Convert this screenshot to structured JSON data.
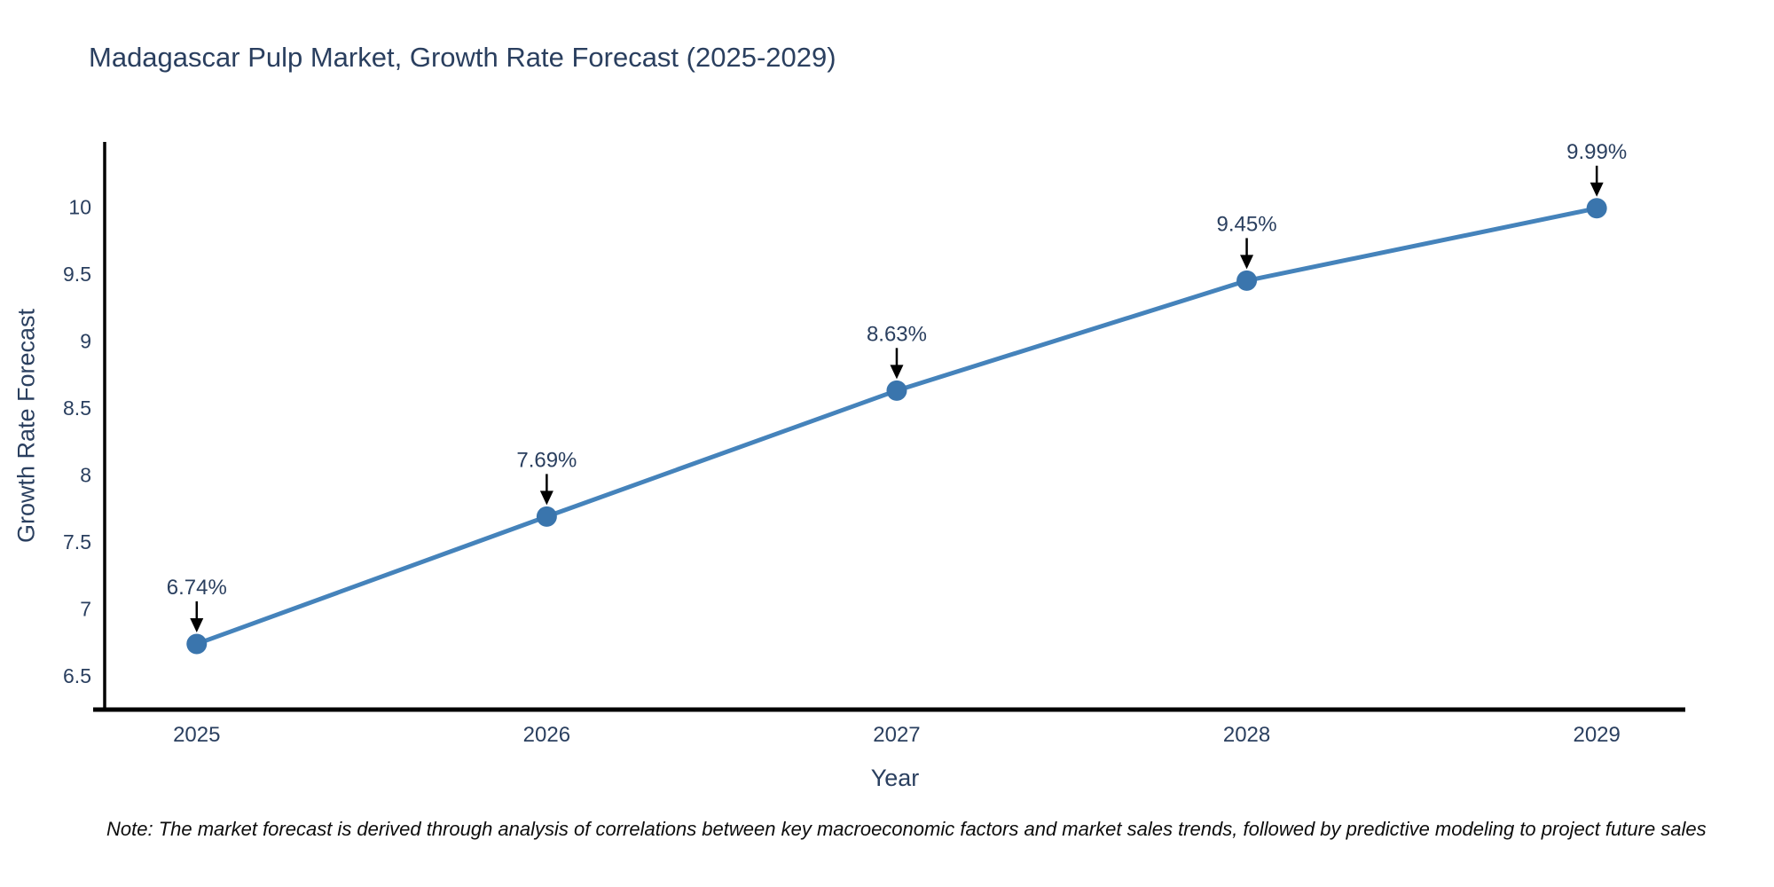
{
  "title": {
    "text": "Madagascar Pulp Market, Growth Rate Forecast (2025-2029)",
    "color": "#2a3f5f"
  },
  "note": {
    "text": "Note: The market forecast is derived through analysis of correlations between key macroeconomic factors and market sales trends, followed by predictive modeling to project future sales",
    "color": "#0d0d0d"
  },
  "chart_data": {
    "type": "line",
    "title": "Madagascar Pulp Market, Growth Rate Forecast (2025-2029)",
    "xlabel": "Year",
    "ylabel": "Growth Rate Forecast",
    "x": [
      2025,
      2026,
      2027,
      2028,
      2029
    ],
    "y": [
      6.74,
      7.69,
      8.63,
      9.45,
      9.99
    ],
    "point_labels": [
      "6.74%",
      "7.69%",
      "8.63%",
      "9.45%",
      "9.99%"
    ],
    "xticks": [
      "2025",
      "2026",
      "2027",
      "2028",
      "2029"
    ],
    "xtick_values": [
      2025,
      2026,
      2027,
      2028,
      2029
    ],
    "yticks": [
      "6.5",
      "7",
      "7.5",
      "8",
      "8.5",
      "9",
      "9.5",
      "10"
    ],
    "ytick_values": [
      6.5,
      7.0,
      7.5,
      8.0,
      8.5,
      9.0,
      9.5,
      10.0
    ],
    "xlim": [
      2024.737,
      2029.253
    ],
    "ylim": [
      6.25,
      10.485
    ],
    "grid": false,
    "legend": "none",
    "annotations_have_arrows": true,
    "colors": {
      "line": "#4583bb",
      "marker": "#3a75ad",
      "axis": "#000000",
      "tick_text": "#2a3f5f",
      "annotation_text": "#2a3f5f",
      "annotation_arrow": "#000000",
      "background": "#ffffff"
    }
  }
}
